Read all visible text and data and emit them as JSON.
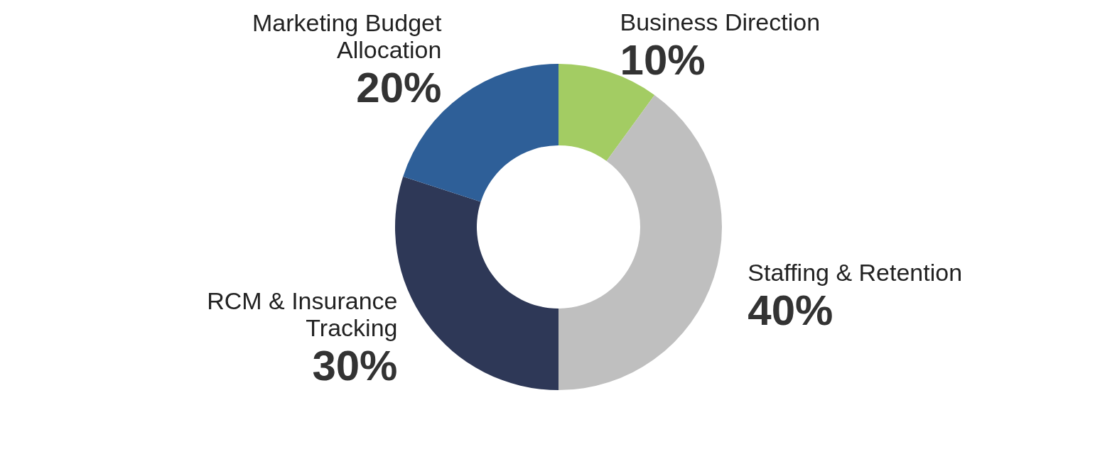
{
  "chart_data": {
    "type": "donut",
    "categories": [
      "Business Direction",
      "Staffing & Retention",
      "RCM & Insurance Tracking",
      "Marketing Budget Allocation"
    ],
    "values": [
      10,
      40,
      30,
      20
    ],
    "value_labels": [
      "10%",
      "40%",
      "30%",
      "20%"
    ],
    "colors": [
      "#a3cc63",
      "#bfbfbf",
      "#2e3857",
      "#2e5f98"
    ]
  }
}
